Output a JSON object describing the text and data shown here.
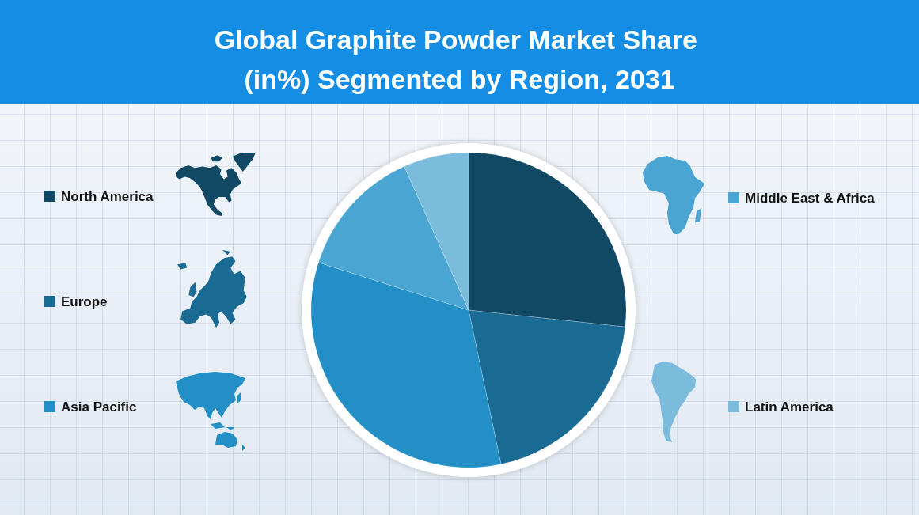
{
  "chart_data": {
    "type": "pie",
    "title": "Global Graphite Powder Market Share (in%) Segmented by Region, 2031",
    "categories": [
      "North America",
      "Europe",
      "Asia Pacific",
      "Middle East & Africa",
      "Latin America"
    ],
    "values": [
      26.7,
      20.0,
      33.2,
      13.4,
      6.7
    ],
    "colors": [
      "#114864",
      "#1a6b94",
      "#2290c6",
      "#4aa5d2",
      "#7bbbdc"
    ],
    "legend": "left"
  }
}
